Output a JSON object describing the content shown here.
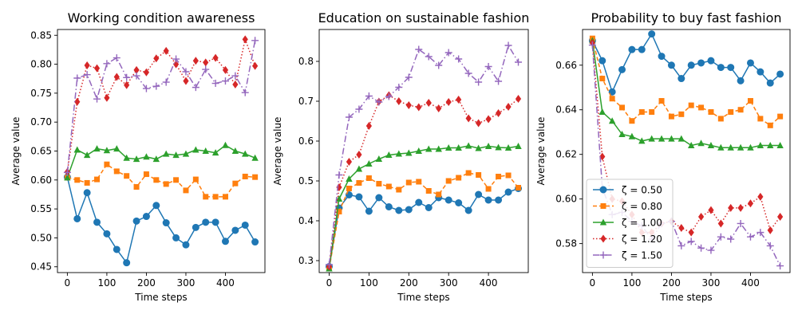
{
  "chart_data": [
    {
      "type": "line",
      "title": "Working condition awareness",
      "xlabel": "Time steps",
      "ylabel": "Average value",
      "xlim": [
        -25,
        500
      ],
      "ylim": [
        0.44,
        0.86
      ],
      "xticks": [
        0,
        100,
        200,
        300,
        400
      ],
      "xtick_labels": [
        "0",
        "100",
        "200",
        "300",
        "400"
      ],
      "yticks": [
        0.45,
        0.5,
        0.55,
        0.6,
        0.65,
        0.7,
        0.75,
        0.8,
        0.85
      ],
      "ytick_labels": [
        "0.45",
        "0.50",
        "0.55",
        "0.60",
        "0.65",
        "0.70",
        "0.75",
        "0.80",
        "0.85"
      ],
      "x": [
        0,
        25,
        50,
        75,
        100,
        125,
        150,
        175,
        200,
        225,
        250,
        275,
        300,
        325,
        350,
        375,
        400,
        425,
        450,
        475
      ],
      "series": [
        {
          "name": "ζ = 0.50",
          "values": [
            0.605,
            0.533,
            0.578,
            0.527,
            0.507,
            0.48,
            0.457,
            0.529,
            0.537,
            0.556,
            0.526,
            0.5,
            0.488,
            0.518,
            0.527,
            0.527,
            0.494,
            0.513,
            0.522,
            0.493
          ]
        },
        {
          "name": "ζ = 0.80",
          "values": [
            0.604,
            0.6,
            0.595,
            0.601,
            0.627,
            0.615,
            0.607,
            0.588,
            0.61,
            0.6,
            0.593,
            0.6,
            0.582,
            0.601,
            0.571,
            0.571,
            0.571,
            0.594,
            0.606,
            0.605
          ]
        },
        {
          "name": "ζ = 1.00",
          "values": [
            0.604,
            0.652,
            0.643,
            0.654,
            0.651,
            0.654,
            0.638,
            0.636,
            0.64,
            0.636,
            0.645,
            0.643,
            0.645,
            0.652,
            0.65,
            0.647,
            0.66,
            0.65,
            0.645,
            0.638
          ]
        },
        {
          "name": "ζ = 1.20",
          "values": [
            0.614,
            0.735,
            0.798,
            0.793,
            0.742,
            0.778,
            0.764,
            0.79,
            0.786,
            0.81,
            0.823,
            0.8,
            0.771,
            0.806,
            0.803,
            0.811,
            0.79,
            0.765,
            0.843,
            0.797
          ]
        },
        {
          "name": "ζ = 1.50",
          "values": [
            0.613,
            0.776,
            0.782,
            0.74,
            0.801,
            0.811,
            0.777,
            0.78,
            0.758,
            0.762,
            0.769,
            0.809,
            0.787,
            0.76,
            0.791,
            0.767,
            0.771,
            0.78,
            0.751,
            0.841
          ]
        }
      ]
    },
    {
      "type": "line",
      "title": "Education on sustainable fashion",
      "xlabel": "Time steps",
      "ylabel": "Average value",
      "xlim": [
        -25,
        500
      ],
      "ylim": [
        0.27,
        0.88
      ],
      "xticks": [
        0,
        100,
        200,
        300,
        400
      ],
      "xtick_labels": [
        "0",
        "100",
        "200",
        "300",
        "400"
      ],
      "yticks": [
        0.3,
        0.4,
        0.5,
        0.6,
        0.7,
        0.8
      ],
      "ytick_labels": [
        "0.3",
        "0.4",
        "0.5",
        "0.6",
        "0.7",
        "0.8"
      ],
      "x": [
        0,
        25,
        50,
        75,
        100,
        125,
        150,
        175,
        200,
        225,
        250,
        275,
        300,
        325,
        350,
        375,
        400,
        425,
        450,
        475
      ],
      "series": [
        {
          "name": "ζ = 0.50",
          "values": [
            0.285,
            0.432,
            0.465,
            0.46,
            0.424,
            0.458,
            0.435,
            0.426,
            0.428,
            0.446,
            0.433,
            0.458,
            0.452,
            0.445,
            0.426,
            0.466,
            0.452,
            0.452,
            0.472,
            0.481
          ]
        },
        {
          "name": "ζ = 0.80",
          "values": [
            0.28,
            0.423,
            0.481,
            0.495,
            0.507,
            0.493,
            0.486,
            0.478,
            0.496,
            0.498,
            0.475,
            0.466,
            0.5,
            0.508,
            0.52,
            0.515,
            0.48,
            0.511,
            0.514,
            0.483
          ]
        },
        {
          "name": "ζ = 1.00",
          "values": [
            0.28,
            0.455,
            0.505,
            0.53,
            0.543,
            0.555,
            0.565,
            0.568,
            0.57,
            0.575,
            0.58,
            0.58,
            0.583,
            0.583,
            0.588,
            0.582,
            0.587,
            0.584,
            0.583,
            0.587
          ]
        },
        {
          "name": "ζ = 1.20",
          "values": [
            0.285,
            0.484,
            0.548,
            0.566,
            0.638,
            0.699,
            0.715,
            0.7,
            0.69,
            0.685,
            0.696,
            0.682,
            0.698,
            0.704,
            0.657,
            0.645,
            0.655,
            0.67,
            0.686,
            0.706
          ]
        },
        {
          "name": "ζ = 1.50",
          "values": [
            0.29,
            0.515,
            0.66,
            0.68,
            0.713,
            0.698,
            0.712,
            0.735,
            0.76,
            0.83,
            0.812,
            0.79,
            0.822,
            0.806,
            0.77,
            0.748,
            0.787,
            0.75,
            0.84,
            0.798
          ]
        }
      ]
    },
    {
      "type": "line",
      "title": "Probability to buy fast fashion",
      "xlabel": "Time steps",
      "ylabel": "Average value",
      "xlim": [
        -25,
        500
      ],
      "ylim": [
        0.567,
        0.676
      ],
      "xticks": [
        0,
        100,
        200,
        300,
        400
      ],
      "xtick_labels": [
        "0",
        "100",
        "200",
        "300",
        "400"
      ],
      "yticks": [
        0.58,
        0.6,
        0.62,
        0.64,
        0.66
      ],
      "ytick_labels": [
        "0.58",
        "0.60",
        "0.62",
        "0.64",
        "0.66"
      ],
      "x": [
        0,
        25,
        50,
        75,
        100,
        125,
        150,
        175,
        200,
        225,
        250,
        275,
        300,
        325,
        350,
        375,
        400,
        425,
        450,
        475
      ],
      "series": [
        {
          "name": "ζ = 0.50",
          "values": [
            0.671,
            0.662,
            0.648,
            0.658,
            0.667,
            0.667,
            0.674,
            0.664,
            0.66,
            0.654,
            0.66,
            0.661,
            0.662,
            0.659,
            0.659,
            0.653,
            0.661,
            0.657,
            0.652,
            0.656
          ]
        },
        {
          "name": "ζ = 0.80",
          "values": [
            0.672,
            0.654,
            0.645,
            0.641,
            0.635,
            0.639,
            0.639,
            0.644,
            0.637,
            0.638,
            0.642,
            0.641,
            0.639,
            0.636,
            0.639,
            0.64,
            0.644,
            0.636,
            0.633,
            0.637
          ]
        },
        {
          "name": "ζ = 1.00",
          "values": [
            0.671,
            0.639,
            0.635,
            0.629,
            0.628,
            0.626,
            0.627,
            0.627,
            0.627,
            0.627,
            0.624,
            0.625,
            0.624,
            0.623,
            0.623,
            0.623,
            0.623,
            0.624,
            0.624,
            0.624
          ]
        },
        {
          "name": "ζ = 1.20",
          "values": [
            0.67,
            0.619,
            0.6,
            0.599,
            0.593,
            0.585,
            0.585,
            0.589,
            0.59,
            0.587,
            0.585,
            0.592,
            0.595,
            0.589,
            0.596,
            0.596,
            0.598,
            0.601,
            0.586,
            0.592
          ]
        },
        {
          "name": "ζ = 1.50",
          "values": [
            0.669,
            0.605,
            0.593,
            0.594,
            0.59,
            0.588,
            0.582,
            0.589,
            0.59,
            0.579,
            0.581,
            0.578,
            0.577,
            0.583,
            0.582,
            0.589,
            0.583,
            0.585,
            0.579,
            0.57
          ]
        }
      ],
      "legend": "lower-left"
    }
  ],
  "series_colors": [
    "#1f77b4",
    "#ff7f0e",
    "#2ca02c",
    "#d62728",
    "#9467bd"
  ],
  "series_styles": [
    "solid",
    "dashed",
    "solid",
    "dotted",
    "dashdot"
  ],
  "series_markers": [
    "circle",
    "square",
    "triangle",
    "diamond",
    "plus"
  ]
}
